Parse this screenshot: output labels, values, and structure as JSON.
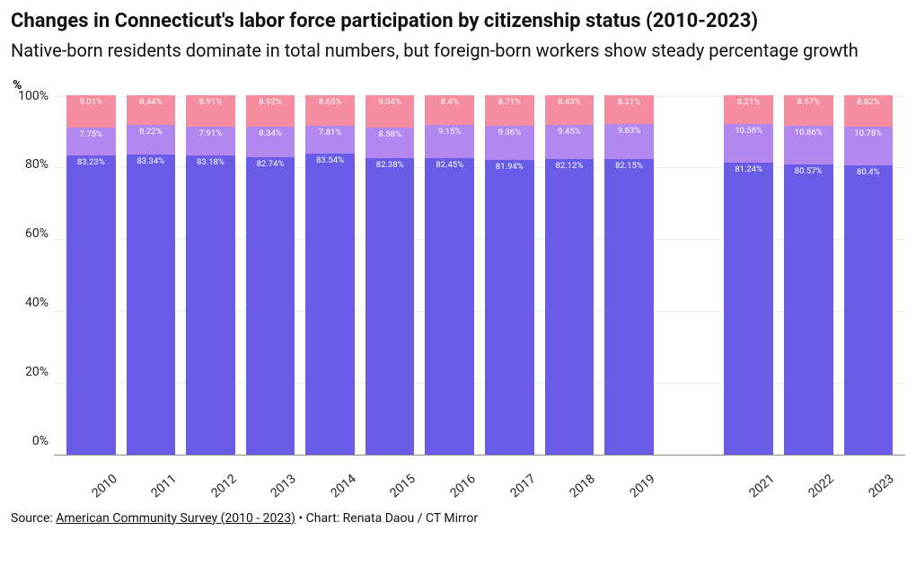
{
  "title": "Changes in Connecticut's labor force participation by citizenship status (2010-2023)",
  "subtitle": "Native-born residents dominate in total numbers, but foreign-born workers show steady percentage growth",
  "y_unit_label": "%",
  "chart": {
    "type": "stacked-bar",
    "y_axis": {
      "min": 0,
      "max": 100,
      "ticks": [
        "100%",
        "80%",
        "60%",
        "40%",
        "20%",
        "0%"
      ],
      "tick_positions_pct": [
        0,
        20,
        40,
        60,
        80,
        100
      ]
    },
    "gridline_color": "#eeeeee",
    "axis_line_color": "#888888",
    "background_color": "#ffffff",
    "segment_colors": {
      "native": "#6b5ce7",
      "naturalized": "#b288f0",
      "noncitizen": "#f58ca0"
    },
    "bar_width_ratio": 0.82,
    "label_fontsize": 9.5,
    "label_color": "#ffffff",
    "years": [
      {
        "year": "2010",
        "native": 83.23,
        "naturalized": 7.75,
        "noncitizen": 9.01,
        "native_label": "83.23%",
        "naturalized_label": "7.75%",
        "noncitizen_label": "9.01%"
      },
      {
        "year": "2011",
        "native": 83.34,
        "naturalized": 8.22,
        "noncitizen": 8.44,
        "native_label": "83.34%",
        "naturalized_label": "8.22%",
        "noncitizen_label": "8.44%"
      },
      {
        "year": "2012",
        "native": 83.18,
        "naturalized": 7.91,
        "noncitizen": 8.91,
        "native_label": "83.18%",
        "naturalized_label": "7.91%",
        "noncitizen_label": "8.91%"
      },
      {
        "year": "2013",
        "native": 82.74,
        "naturalized": 8.34,
        "noncitizen": 8.92,
        "native_label": "82.74%",
        "naturalized_label": "8.34%",
        "noncitizen_label": "8.92%"
      },
      {
        "year": "2014",
        "native": 83.54,
        "naturalized": 7.81,
        "noncitizen": 8.65,
        "native_label": "83.54%",
        "naturalized_label": "7.81%",
        "noncitizen_label": "8.65%"
      },
      {
        "year": "2015",
        "native": 82.38,
        "naturalized": 8.58,
        "noncitizen": 9.04,
        "native_label": "82.38%",
        "naturalized_label": "8.58%",
        "noncitizen_label": "9.04%"
      },
      {
        "year": "2016",
        "native": 82.45,
        "naturalized": 9.15,
        "noncitizen": 8.4,
        "native_label": "82.45%",
        "naturalized_label": "9.15%",
        "noncitizen_label": "8.4%"
      },
      {
        "year": "2017",
        "native": 81.94,
        "naturalized": 9.36,
        "noncitizen": 8.71,
        "native_label": "81.94%",
        "naturalized_label": "9.36%",
        "noncitizen_label": "8.71%"
      },
      {
        "year": "2018",
        "native": 82.12,
        "naturalized": 9.45,
        "noncitizen": 8.43,
        "native_label": "82.12%",
        "naturalized_label": "9.45%",
        "noncitizen_label": "8.43%"
      },
      {
        "year": "2019",
        "native": 82.15,
        "naturalized": 9.63,
        "noncitizen": 8.21,
        "native_label": "82.15%",
        "naturalized_label": "9.63%",
        "noncitizen_label": "8.21%"
      },
      {
        "year": "",
        "native": null,
        "naturalized": null,
        "noncitizen": null,
        "native_label": "",
        "naturalized_label": "",
        "noncitizen_label": ""
      },
      {
        "year": "2021",
        "native": 81.24,
        "naturalized": 10.56,
        "noncitizen": 8.21,
        "native_label": "81.24%",
        "naturalized_label": "10.56%",
        "noncitizen_label": "8.21%"
      },
      {
        "year": "2022",
        "native": 80.57,
        "naturalized": 10.86,
        "noncitizen": 8.57,
        "native_label": "80.57%",
        "naturalized_label": "10.86%",
        "noncitizen_label": "8.57%"
      },
      {
        "year": "2023",
        "native": 80.4,
        "naturalized": 10.78,
        "noncitizen": 8.82,
        "native_label": "80.4%",
        "naturalized_label": "10.78%",
        "noncitizen_label": "8.82%"
      }
    ]
  },
  "credit": {
    "source_label": "Source: ",
    "source_link_text": "American Community Survey (2010 - 2023)",
    "chart_by": " • Chart: Renata Daou / CT Mirror"
  }
}
